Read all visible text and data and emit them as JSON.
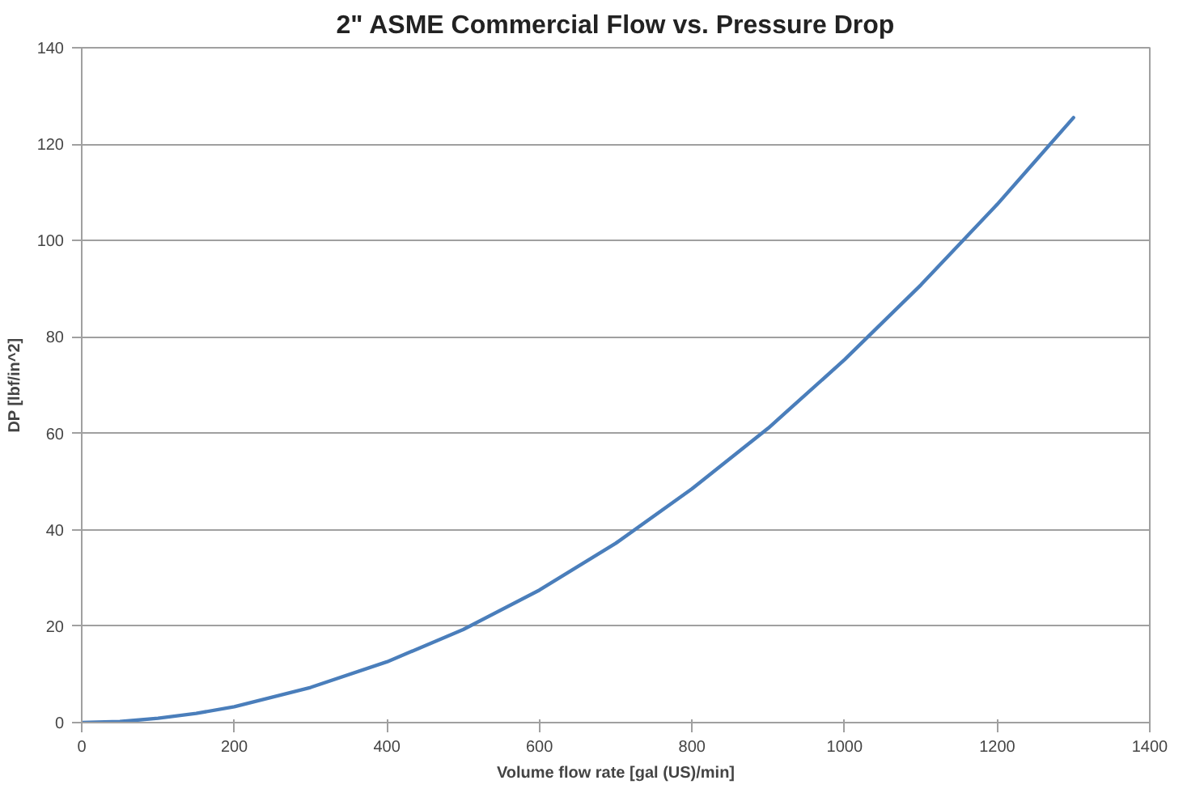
{
  "chart_data": {
    "type": "line",
    "title": "2\" ASME Commercial Flow vs. Pressure Drop",
    "xlabel": "Volume flow rate [gal (US)/min]",
    "ylabel": "DP [lbf/in^2]",
    "x": [
      0,
      50,
      100,
      150,
      200,
      300,
      400,
      500,
      600,
      700,
      800,
      900,
      1000,
      1100,
      1200,
      1250,
      1300
    ],
    "series": [
      {
        "color": "#4a7ebb",
        "values": [
          0,
          0.2,
          0.9,
          1.9,
          3.3,
          7.3,
          12.6,
          19.3,
          27.5,
          37.2,
          48.5,
          61.1,
          75.3,
          90.8,
          107.5,
          116.5,
          125.5
        ]
      }
    ],
    "xlim": [
      0,
      1400
    ],
    "ylim": [
      0,
      140
    ],
    "xticks": [
      0,
      200,
      400,
      600,
      800,
      1000,
      1200,
      1400
    ],
    "yticks": [
      0,
      20,
      40,
      60,
      80,
      100,
      120,
      140
    ],
    "grid": "y",
    "marker": "none",
    "line_style": "solid"
  }
}
